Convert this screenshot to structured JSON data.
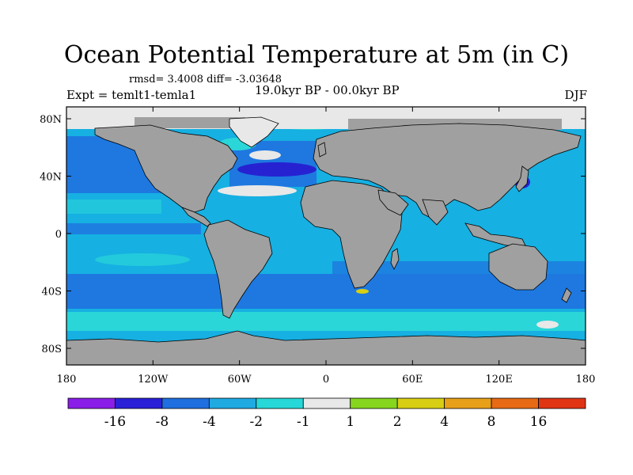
{
  "title": "Ocean Potential Temperature at 5m (in C)",
  "stats": "rmsd= 3.4008 diff= -3.03648",
  "experiment": "Expt = temlt1-temla1",
  "period": "19.0kyr BP - 00.0kyr BP",
  "season": "DJF",
  "x_ticks": [
    {
      "label": "180",
      "lon": -180
    },
    {
      "label": "120W",
      "lon": -120
    },
    {
      "label": "60W",
      "lon": -60
    },
    {
      "label": "0",
      "lon": 0
    },
    {
      "label": "60E",
      "lon": 60
    },
    {
      "label": "120E",
      "lon": 120
    },
    {
      "label": "180",
      "lon": 180
    }
  ],
  "y_ticks": [
    {
      "label": "80N",
      "lat": 80
    },
    {
      "label": "40N",
      "lat": 40
    },
    {
      "label": "0",
      "lat": 0
    },
    {
      "label": "40S",
      "lat": -40
    },
    {
      "label": "80S",
      "lat": -80
    }
  ],
  "colorbar": {
    "colors": [
      "#8a1ee8",
      "#2a20d8",
      "#1f6fe0",
      "#1faae2",
      "#27d8d8",
      "#e8e8e8",
      "#86d61e",
      "#d8cf14",
      "#e8a018",
      "#e86a14",
      "#e03414"
    ],
    "labels": [
      "-16",
      "-8",
      "-4",
      "-2",
      "-1",
      "1",
      "2",
      "4",
      "8",
      "16"
    ]
  },
  "colors": {
    "ocean_base": "#16b0e2",
    "ocean_darker": "#1e78e0",
    "deep_blue": "#2622d2",
    "cyan": "#2ad6d8",
    "land": "#a0a0a0",
    "ice_white": "#e8e8e8"
  }
}
